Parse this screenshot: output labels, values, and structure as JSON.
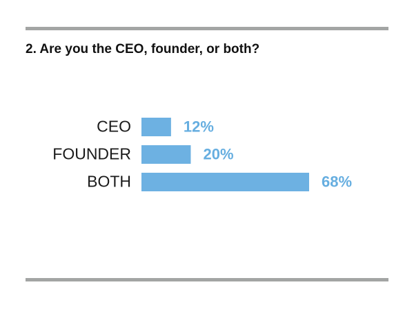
{
  "chart_data": {
    "type": "bar",
    "orientation": "horizontal",
    "title": "2. Are you the CEO, founder, or both?",
    "categories": [
      "CEO",
      "FOUNDER",
      "BOTH"
    ],
    "values": [
      12,
      20,
      68
    ],
    "value_labels": [
      "12%",
      "20%",
      "68%"
    ],
    "color": "#6db1e2"
  }
}
